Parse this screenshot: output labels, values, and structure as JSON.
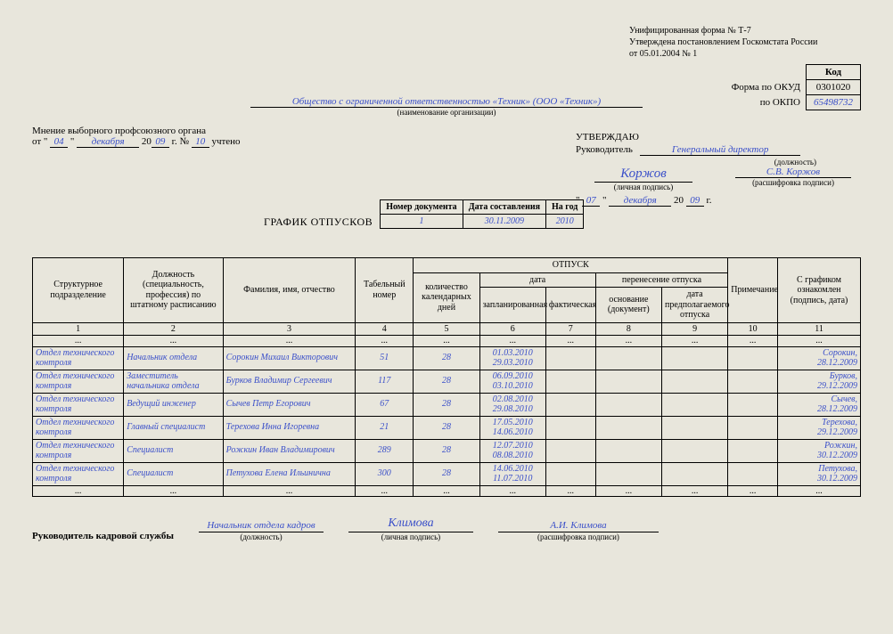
{
  "form_header": {
    "line1": "Унифицированная форма № Т-7",
    "line2": "Утверждена постановлением Госкомстата России",
    "line3": "от 05.01.2004 № 1"
  },
  "codebox": {
    "kod_label": "Код",
    "okud_label": "Форма по ОКУД",
    "okud": "0301020",
    "okpo_label": "по ОКПО",
    "okpo": "65498732"
  },
  "organization": "Общество с ограниченной ответственностью «Техник» (ООО «Техник»)",
  "organization_sub": "(наименование организации)",
  "opinion": {
    "title": "Мнение выборного профсоюзного органа",
    "ot": "от",
    "day": "04",
    "month": "декабря",
    "century": "20",
    "yy": "09",
    "g_no": "г. №",
    "no": "10",
    "uchteno": "учтено"
  },
  "approve": {
    "title": "УТВЕРЖДАЮ",
    "ruk_label": "Руководитель",
    "position": "Генеральный директор",
    "pos_sub": "(должность)",
    "sign": "Коржов",
    "sign_sub": "(личная подпись)",
    "decipher": "С.В. Коржов",
    "decipher_sub": "(расшифровка подписи)",
    "day": "07",
    "month": "декабря",
    "century": "20",
    "yy": "09",
    "g": "г."
  },
  "doc_title": "ГРАФИК ОТПУСКОВ",
  "meta": {
    "doc_no_label": "Номер документа",
    "doc_no": "1",
    "date_label": "Дата составления",
    "date": "30.11.2009",
    "year_label": "На год",
    "year": "2010"
  },
  "table": {
    "headers": {
      "unit": "Структурное подразделение",
      "position": "Должность (специальность, профессия) по штатному расписанию",
      "fio": "Фамилия, имя, отчество",
      "tabno": "Табельный номер",
      "vacation": "ОТПУСК",
      "days": "количество календарных дней",
      "date": "дата",
      "planned": "запланированная",
      "actual": "фактическая",
      "transfer": "перенесение отпуска",
      "basis": "основание (документ)",
      "newdate": "дата предполагаемого отпуска",
      "note": "Примечание",
      "ack": "С графиком ознакомлен (подпись, дата)"
    },
    "colnums": [
      "1",
      "2",
      "3",
      "4",
      "5",
      "6",
      "7",
      "8",
      "9",
      "10",
      "11"
    ],
    "rows": [
      {
        "unit": "Отдел технического контроля",
        "pos": "Начальник отдела",
        "fio": "Сорокин Михаил Викторович",
        "tab": "51",
        "days": "28",
        "plan": "01.03.2010 29.03.2010",
        "sign": "Сорокин, 28.12.2009"
      },
      {
        "unit": "Отдел технического контроля",
        "pos": "Заместитель начальника отдела",
        "fio": "Бурков Владимир Сергеевич",
        "tab": "117",
        "days": "28",
        "plan": "06.09.2010 03.10.2010",
        "sign": "Бурков, 29.12.2009"
      },
      {
        "unit": "Отдел технического контроля",
        "pos": "Ведущий инженер",
        "fio": "Сычев Петр Егорович",
        "tab": "67",
        "days": "28",
        "plan": "02.08.2010 29.08.2010",
        "sign": "Сычев, 28.12.2009"
      },
      {
        "unit": "Отдел технического контроля",
        "pos": "Главный специалист",
        "fio": "Терехова Инна Игоревна",
        "tab": "21",
        "days": "28",
        "plan": "17.05.2010 14.06.2010",
        "sign": "Терехова, 29.12.2009"
      },
      {
        "unit": "Отдел технического контроля",
        "pos": "Специалист",
        "fio": "Рожкин Иван Владимирович",
        "tab": "289",
        "days": "28",
        "plan": "12.07.2010 08.08.2010",
        "sign": "Рожкин, 30.12.2009"
      },
      {
        "unit": "Отдел технического контроля",
        "pos": "Специалист",
        "fio": "Петухова Елена Ильинична",
        "tab": "300",
        "days": "28",
        "plan": "14.06.2010 11.07.2010",
        "sign": "Петухова, 30.12.2009"
      }
    ]
  },
  "footer": {
    "title": "Руководитель кадровой службы",
    "position": "Начальник отдела кадров",
    "pos_sub": "(должность)",
    "sign": "Климова",
    "sign_sub": "(личная подпись)",
    "decipher": "А.И. Климова",
    "decipher_sub": "(расшифровка подписи)"
  }
}
